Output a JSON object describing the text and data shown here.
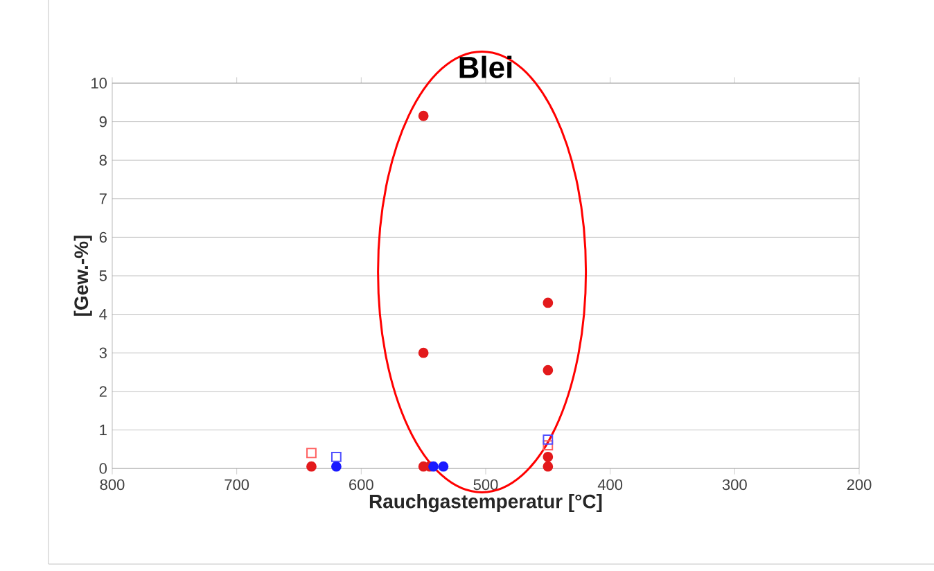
{
  "chart_data": {
    "type": "scatter",
    "title": "Blei",
    "xlabel": "Rauchgastemperatur [°C]",
    "ylabel": "[Gew.-%]",
    "xlim": [
      800,
      200
    ],
    "ylim": [
      0,
      10
    ],
    "xticks": [
      800,
      700,
      600,
      500,
      400,
      300,
      200
    ],
    "yticks": [
      0,
      1,
      2,
      3,
      4,
      5,
      6,
      7,
      8,
      9,
      10
    ],
    "grid": "y",
    "series": [
      {
        "color": "#e31a1c",
        "marker": "circle",
        "x": [
          640,
          550,
          550,
          550,
          545,
          450,
          450,
          450,
          450
        ],
        "values": [
          0.05,
          9.15,
          3.0,
          0.05,
          0.05,
          4.3,
          2.55,
          0.3,
          0.05
        ]
      },
      {
        "color": "#ff6060",
        "marker": "square",
        "x": [
          640,
          450
        ],
        "values": [
          0.4,
          0.6
        ]
      },
      {
        "color": "#1a1aff",
        "marker": "circle",
        "x": [
          620,
          542,
          534
        ],
        "values": [
          0.05,
          0.05,
          0.05
        ]
      },
      {
        "color": "#5050ff",
        "marker": "square",
        "x": [
          620,
          450
        ],
        "values": [
          0.3,
          0.75
        ]
      }
    ]
  }
}
